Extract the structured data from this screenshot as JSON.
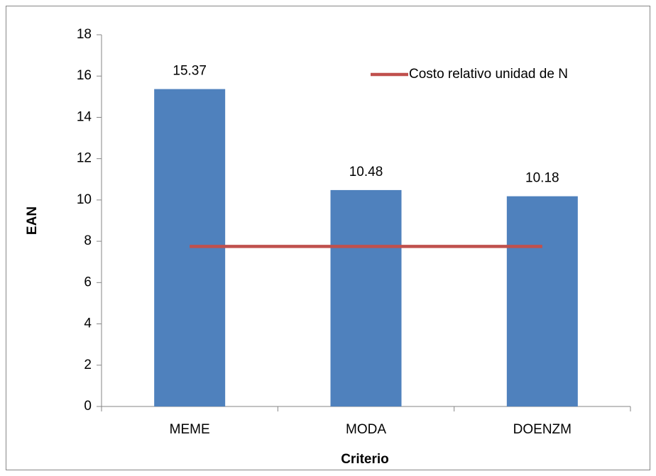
{
  "chart_data": {
    "type": "bar",
    "x_label": "Criterio",
    "y_label": "EAN",
    "categories": [
      "MEME",
      "MODA",
      "DOENZM"
    ],
    "series": [
      {
        "type": "bar",
        "color": "#4f81bd",
        "values": [
          15.37,
          10.48,
          10.18
        ]
      },
      {
        "type": "line",
        "name": "Costo relativo unidad de N",
        "color": "#c0504d",
        "values": [
          7.75,
          7.75,
          7.75
        ]
      }
    ],
    "ylim": [
      0,
      18
    ],
    "yticks": [
      0,
      2,
      4,
      6,
      8,
      10,
      12,
      14,
      16,
      18
    ],
    "grid": false,
    "legend": "top-right"
  }
}
